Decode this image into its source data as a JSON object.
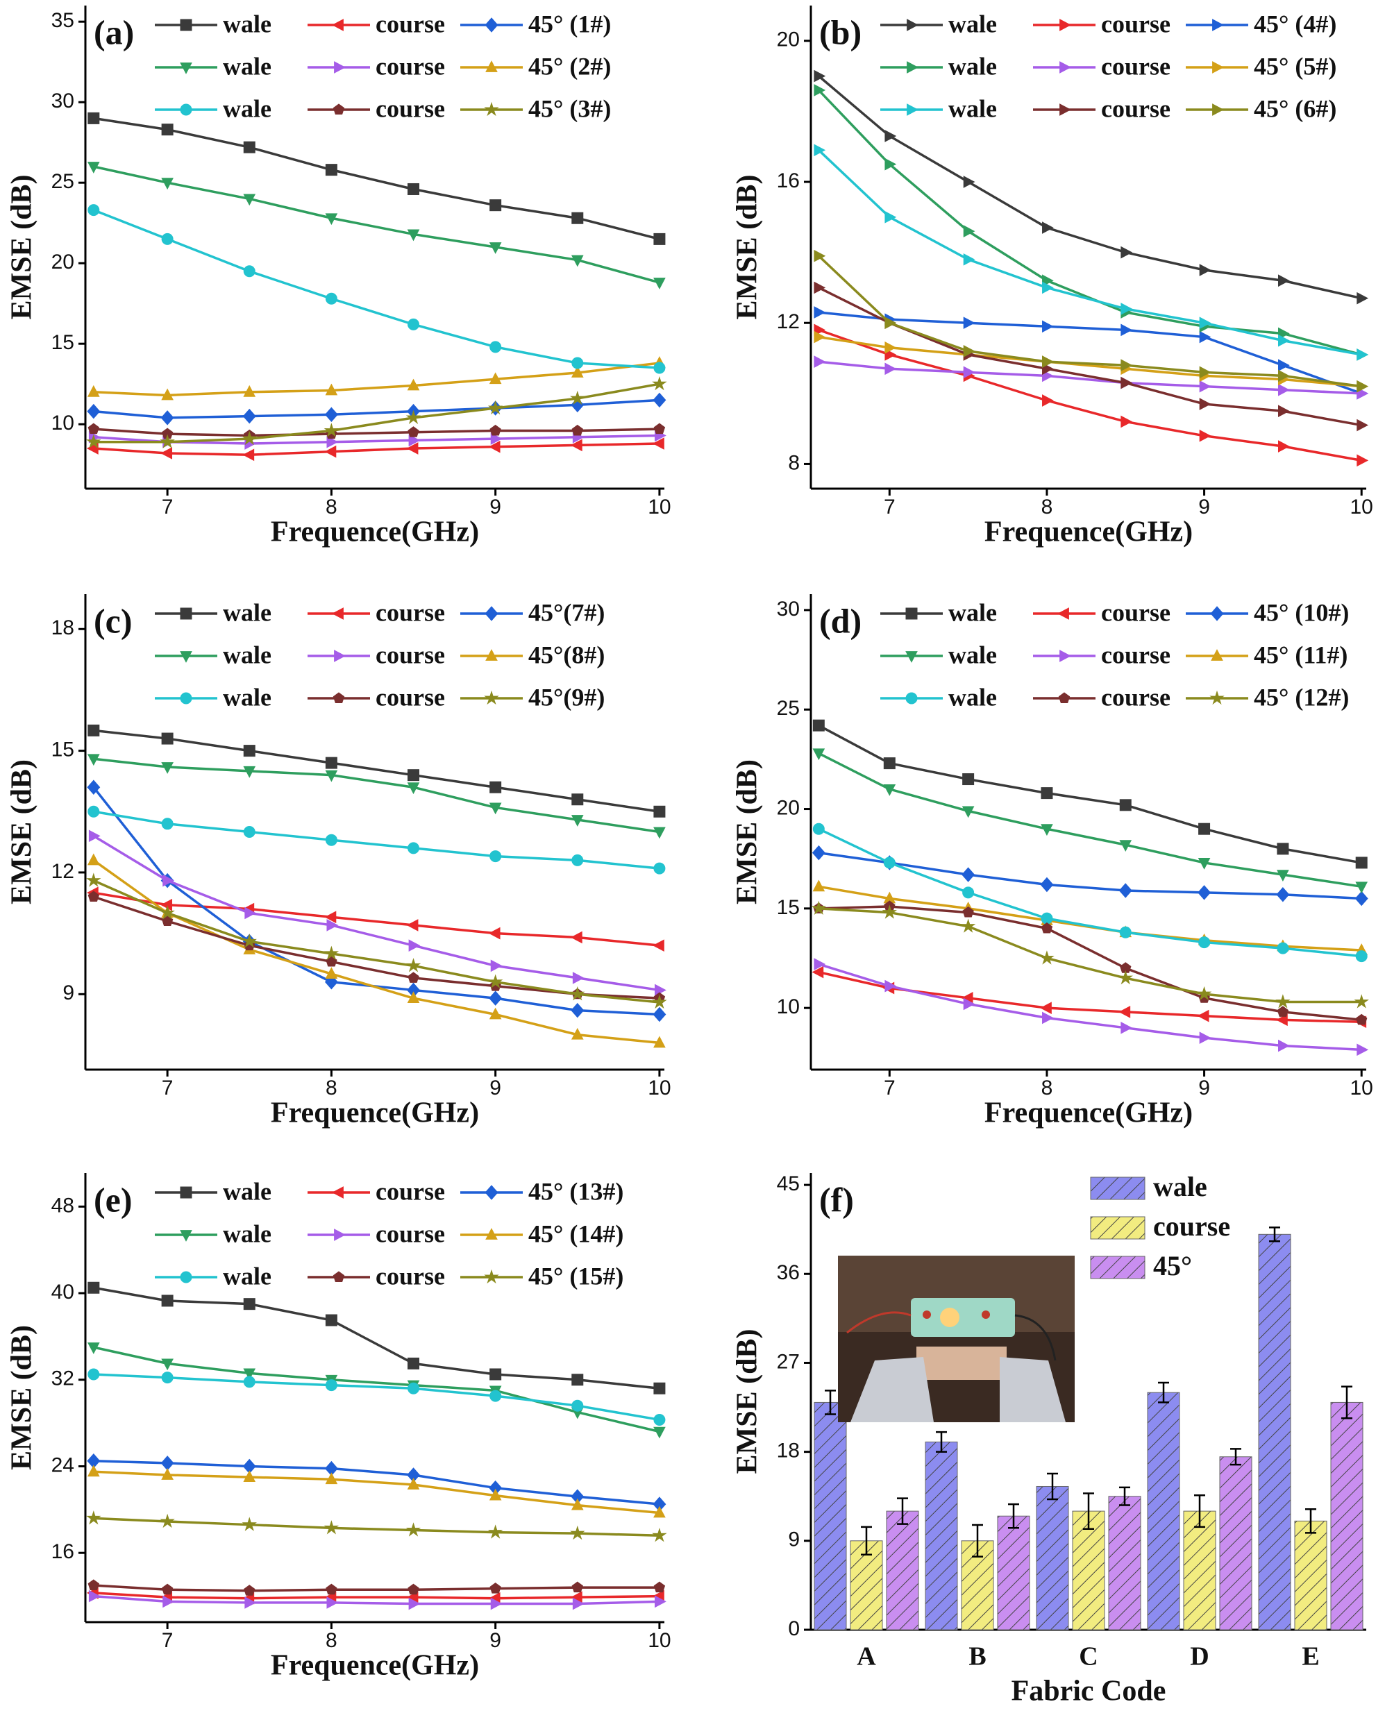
{
  "chart_data": [
    {
      "type": "line",
      "label": "(a)",
      "xlabel": "Frequence(GHz)",
      "ylabel": "EMSE (dB)",
      "x": [
        6.55,
        7,
        7.5,
        8,
        8.5,
        9,
        9.5,
        10
      ],
      "xlim": [
        6.5,
        10.03
      ],
      "xticks": [
        7,
        8,
        9,
        10
      ],
      "ylim": [
        6.0,
        36
      ],
      "yticks": [
        10,
        15,
        20,
        25,
        30,
        35
      ],
      "series": [
        {
          "name": "wale",
          "color": "#3a3a3a",
          "marker": "square",
          "values": [
            29,
            28.3,
            27.2,
            25.8,
            24.6,
            23.6,
            22.8,
            21.5
          ]
        },
        {
          "name": "course",
          "color": "#e8282a",
          "marker": "tri-left",
          "values": [
            8.5,
            8.2,
            8.1,
            8.3,
            8.5,
            8.6,
            8.7,
            8.8
          ]
        },
        {
          "name": "45° (1#)",
          "color": "#1f5fd6",
          "marker": "diamond",
          "values": [
            10.8,
            10.4,
            10.5,
            10.6,
            10.8,
            11,
            11.2,
            11.5
          ]
        },
        {
          "name": "wale",
          "color": "#2e9e5e",
          "marker": "tri-down",
          "values": [
            26,
            25,
            24,
            22.8,
            21.8,
            21,
            20.2,
            18.8
          ]
        },
        {
          "name": "course",
          "color": "#a55ce8",
          "marker": "tri-right",
          "values": [
            9.2,
            8.9,
            8.8,
            8.9,
            9,
            9.1,
            9.2,
            9.3
          ]
        },
        {
          "name": "45° (2#)",
          "color": "#d4a017",
          "marker": "tri-up",
          "values": [
            12,
            11.8,
            12,
            12.1,
            12.4,
            12.8,
            13.2,
            13.8
          ]
        },
        {
          "name": "wale",
          "color": "#22c3cf",
          "marker": "circle",
          "values": [
            23.3,
            21.5,
            19.5,
            17.8,
            16.2,
            14.8,
            13.8,
            13.5
          ]
        },
        {
          "name": "course",
          "color": "#7a2e2e",
          "marker": "pentagon",
          "values": [
            9.7,
            9.4,
            9.3,
            9.4,
            9.5,
            9.6,
            9.6,
            9.7
          ]
        },
        {
          "name": "45° (3#)",
          "color": "#8a8a1e",
          "marker": "star",
          "values": [
            8.9,
            8.9,
            9.1,
            9.6,
            10.4,
            11,
            11.6,
            12.5
          ]
        }
      ]
    },
    {
      "type": "line",
      "label": "(b)",
      "xlabel": "Frequence(GHz)",
      "ylabel": "EMSE (dB)",
      "x": [
        6.55,
        7,
        7.5,
        8,
        8.5,
        9,
        9.5,
        10
      ],
      "xlim": [
        6.5,
        10.03
      ],
      "xticks": [
        7,
        8,
        9,
        10
      ],
      "ylim": [
        7.3,
        21
      ],
      "yticks": [
        8,
        12,
        16,
        20
      ],
      "series": [
        {
          "name": "wale",
          "color": "#3a3a3a",
          "marker": "tri-right",
          "values": [
            19,
            17.3,
            16,
            14.7,
            14,
            13.5,
            13.2,
            12.7
          ]
        },
        {
          "name": "course",
          "color": "#e8282a",
          "marker": "tri-right",
          "values": [
            11.8,
            11.1,
            10.5,
            9.8,
            9.2,
            8.8,
            8.5,
            8.1
          ]
        },
        {
          "name": "45° (4#)",
          "color": "#1f5fd6",
          "marker": "tri-right",
          "values": [
            12.3,
            12.1,
            12,
            11.9,
            11.8,
            11.6,
            10.8,
            10
          ]
        },
        {
          "name": "wale",
          "color": "#2e9e5e",
          "marker": "tri-right",
          "values": [
            18.6,
            16.5,
            14.6,
            13.2,
            12.3,
            11.9,
            11.7,
            11.1
          ]
        },
        {
          "name": "course",
          "color": "#a55ce8",
          "marker": "tri-right",
          "values": [
            10.9,
            10.7,
            10.6,
            10.5,
            10.3,
            10.2,
            10.1,
            10
          ]
        },
        {
          "name": "45° (5#)",
          "color": "#d4a017",
          "marker": "tri-right",
          "values": [
            11.6,
            11.3,
            11.1,
            10.9,
            10.7,
            10.5,
            10.4,
            10.2
          ]
        },
        {
          "name": "wale",
          "color": "#22c3cf",
          "marker": "tri-right",
          "values": [
            16.9,
            15,
            13.8,
            13,
            12.4,
            12,
            11.5,
            11.1
          ]
        },
        {
          "name": "course",
          "color": "#7a2e2e",
          "marker": "tri-right",
          "values": [
            13,
            12,
            11.1,
            10.7,
            10.3,
            9.7,
            9.5,
            9.1
          ]
        },
        {
          "name": "45° (6#)",
          "color": "#8a8a1e",
          "marker": "tri-right",
          "values": [
            13.9,
            12,
            11.2,
            10.9,
            10.8,
            10.6,
            10.5,
            10.2
          ]
        }
      ]
    },
    {
      "type": "line",
      "label": "(c)",
      "xlabel": "Frequence(GHz)",
      "ylabel": "EMSE (dB)",
      "x": [
        6.55,
        7,
        7.5,
        8,
        8.5,
        9,
        9.5,
        10
      ],
      "xlim": [
        6.5,
        10.03
      ],
      "xticks": [
        7,
        8,
        9,
        10
      ],
      "ylim": [
        7.14,
        18.86
      ],
      "yticks": [
        9,
        12,
        15,
        18
      ],
      "series": [
        {
          "name": "wale",
          "color": "#3a3a3a",
          "marker": "square",
          "values": [
            15.5,
            15.3,
            15,
            14.7,
            14.4,
            14.1,
            13.8,
            13.5
          ]
        },
        {
          "name": "course",
          "color": "#e8282a",
          "marker": "tri-left",
          "values": [
            11.5,
            11.2,
            11.1,
            10.9,
            10.7,
            10.5,
            10.4,
            10.2
          ]
        },
        {
          "name": "45°(7#)",
          "color": "#1f5fd6",
          "marker": "diamond",
          "values": [
            14.1,
            11.8,
            10.3,
            9.3,
            9.1,
            8.9,
            8.6,
            8.5
          ]
        },
        {
          "name": "wale",
          "color": "#2e9e5e",
          "marker": "tri-down",
          "values": [
            14.8,
            14.6,
            14.5,
            14.4,
            14.1,
            13.6,
            13.3,
            13
          ]
        },
        {
          "name": "course",
          "color": "#a55ce8",
          "marker": "tri-right",
          "values": [
            12.9,
            11.8,
            11,
            10.7,
            10.2,
            9.7,
            9.4,
            9.1
          ]
        },
        {
          "name": "45°(8#)",
          "color": "#d4a017",
          "marker": "tri-up",
          "values": [
            12.3,
            11,
            10.1,
            9.5,
            8.9,
            8.5,
            8,
            7.8
          ]
        },
        {
          "name": "wale",
          "color": "#22c3cf",
          "marker": "circle",
          "values": [
            13.5,
            13.2,
            13,
            12.8,
            12.6,
            12.4,
            12.3,
            12.1
          ]
        },
        {
          "name": "course",
          "color": "#7a2e2e",
          "marker": "pentagon",
          "values": [
            11.4,
            10.8,
            10.2,
            9.8,
            9.4,
            9.2,
            9,
            8.9
          ]
        },
        {
          "name": "45°(9#)",
          "color": "#8a8a1e",
          "marker": "star",
          "values": [
            11.8,
            11,
            10.3,
            10,
            9.7,
            9.3,
            9,
            8.8
          ]
        }
      ]
    },
    {
      "type": "line",
      "label": "(d)",
      "xlabel": "Frequence(GHz)",
      "ylabel": "EMSE (dB)",
      "x": [
        6.55,
        7,
        7.5,
        8,
        8.5,
        9,
        9.5,
        10
      ],
      "xlim": [
        6.5,
        10.03
      ],
      "xticks": [
        7,
        8,
        9,
        10
      ],
      "ylim": [
        6.9,
        30.8
      ],
      "yticks": [
        10,
        15,
        20,
        25,
        30
      ],
      "series": [
        {
          "name": "wale",
          "color": "#3a3a3a",
          "marker": "square",
          "values": [
            24.2,
            22.3,
            21.5,
            20.8,
            20.2,
            19,
            18,
            17.3
          ]
        },
        {
          "name": "course",
          "color": "#e8282a",
          "marker": "tri-left",
          "values": [
            11.8,
            11,
            10.5,
            10,
            9.8,
            9.6,
            9.4,
            9.3
          ]
        },
        {
          "name": "45° (10#)",
          "color": "#1f5fd6",
          "marker": "diamond",
          "values": [
            17.8,
            17.3,
            16.7,
            16.2,
            15.9,
            15.8,
            15.7,
            15.5
          ]
        },
        {
          "name": "wale",
          "color": "#2e9e5e",
          "marker": "tri-down",
          "values": [
            22.8,
            21,
            19.9,
            19,
            18.2,
            17.3,
            16.7,
            16.1
          ]
        },
        {
          "name": "course",
          "color": "#a55ce8",
          "marker": "tri-right",
          "values": [
            12.2,
            11.1,
            10.2,
            9.5,
            9,
            8.5,
            8.1,
            7.9
          ]
        },
        {
          "name": "45° (11#)",
          "color": "#d4a017",
          "marker": "tri-up",
          "values": [
            16.1,
            15.5,
            15,
            14.4,
            13.8,
            13.4,
            13.1,
            12.9
          ]
        },
        {
          "name": "wale",
          "color": "#22c3cf",
          "marker": "circle",
          "values": [
            19,
            17.3,
            15.8,
            14.5,
            13.8,
            13.3,
            13,
            12.6
          ]
        },
        {
          "name": "course",
          "color": "#7a2e2e",
          "marker": "pentagon",
          "values": [
            15,
            15.1,
            14.8,
            14,
            12,
            10.5,
            9.8,
            9.4
          ]
        },
        {
          "name": "45° (12#)",
          "color": "#8a8a1e",
          "marker": "star",
          "values": [
            15,
            14.8,
            14.1,
            12.5,
            11.5,
            10.7,
            10.3,
            10.3
          ]
        }
      ]
    },
    {
      "type": "line",
      "label": "(e)",
      "xlabel": "Frequence(GHz)",
      "ylabel": "EMSE (dB)",
      "x": [
        6.55,
        7,
        7.5,
        8,
        8.5,
        9,
        9.5,
        10
      ],
      "xlim": [
        6.5,
        10.03
      ],
      "xticks": [
        7,
        8,
        9,
        10
      ],
      "ylim": [
        9.6,
        51.1
      ],
      "yticks": [
        16,
        24,
        32,
        40,
        48
      ],
      "series": [
        {
          "name": "wale",
          "color": "#3a3a3a",
          "marker": "square",
          "values": [
            40.5,
            39.3,
            39,
            37.5,
            33.5,
            32.5,
            32,
            31.2
          ]
        },
        {
          "name": "course",
          "color": "#e8282a",
          "marker": "tri-left",
          "values": [
            12.3,
            11.9,
            11.8,
            11.9,
            11.9,
            11.8,
            11.9,
            12
          ]
        },
        {
          "name": "45° (13#)",
          "color": "#1f5fd6",
          "marker": "diamond",
          "values": [
            24.5,
            24.3,
            24,
            23.8,
            23.2,
            22,
            21.2,
            20.5
          ]
        },
        {
          "name": "wale",
          "color": "#2e9e5e",
          "marker": "tri-down",
          "values": [
            35,
            33.5,
            32.6,
            32,
            31.5,
            31,
            29,
            27.2
          ]
        },
        {
          "name": "course",
          "color": "#a55ce8",
          "marker": "tri-right",
          "values": [
            12,
            11.5,
            11.4,
            11.4,
            11.3,
            11.3,
            11.3,
            11.5
          ]
        },
        {
          "name": "45° (14#)",
          "color": "#d4a017",
          "marker": "tri-up",
          "values": [
            23.5,
            23.2,
            23,
            22.8,
            22.3,
            21.3,
            20.4,
            19.7
          ]
        },
        {
          "name": "wale",
          "color": "#22c3cf",
          "marker": "circle",
          "values": [
            32.5,
            32.2,
            31.8,
            31.5,
            31.2,
            30.5,
            29.6,
            28.3
          ]
        },
        {
          "name": "course",
          "color": "#7a2e2e",
          "marker": "pentagon",
          "values": [
            13,
            12.6,
            12.5,
            12.6,
            12.6,
            12.7,
            12.8,
            12.8
          ]
        },
        {
          "name": "45° (15#)",
          "color": "#8a8a1e",
          "marker": "star",
          "values": [
            19.2,
            18.9,
            18.6,
            18.3,
            18.1,
            17.9,
            17.8,
            17.6
          ]
        }
      ]
    },
    {
      "type": "bar",
      "label": "(f)",
      "xlabel": "Fabric Code",
      "ylabel": "EMSE (dB)",
      "categories": [
        "A",
        "B",
        "C",
        "D",
        "E"
      ],
      "ylim": [
        0,
        46.2
      ],
      "yticks": [
        0,
        9,
        18,
        27,
        36,
        45
      ],
      "series": [
        {
          "name": "wale",
          "color": "#8c8cf0",
          "values": [
            23,
            19,
            14.5,
            24,
            40
          ],
          "errors": [
            1.2,
            1,
            1.3,
            1,
            0.7
          ]
        },
        {
          "name": "course",
          "color": "#f2ec80",
          "values": [
            9,
            9,
            12,
            12,
            11
          ],
          "errors": [
            1.4,
            1.6,
            1.8,
            1.6,
            1.2
          ]
        },
        {
          "name": "45°",
          "color": "#c98ef0",
          "values": [
            12,
            11.5,
            13.5,
            17.5,
            23
          ],
          "errors": [
            1.3,
            1.2,
            0.9,
            0.8,
            1.6
          ]
        }
      ]
    }
  ]
}
